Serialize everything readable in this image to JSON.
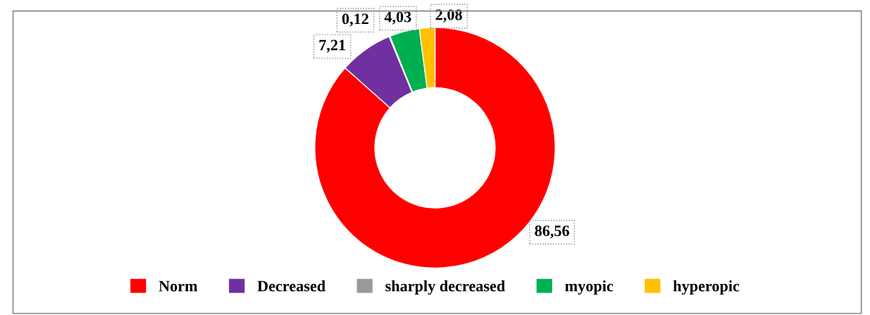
{
  "chart_data": {
    "type": "donut",
    "categories": [
      "Norm",
      "Decreased",
      "sharply decreased",
      "myopic",
      "hyperopic"
    ],
    "values": [
      86.56,
      7.21,
      0.12,
      4.03,
      2.08
    ],
    "value_labels": [
      "86,56",
      "7,21",
      "0,12",
      "4,03",
      "2,08"
    ],
    "colors": [
      "#ff0000",
      "#7030a0",
      "#999999",
      "#00b050",
      "#ffc000"
    ],
    "legend": "bottom"
  }
}
